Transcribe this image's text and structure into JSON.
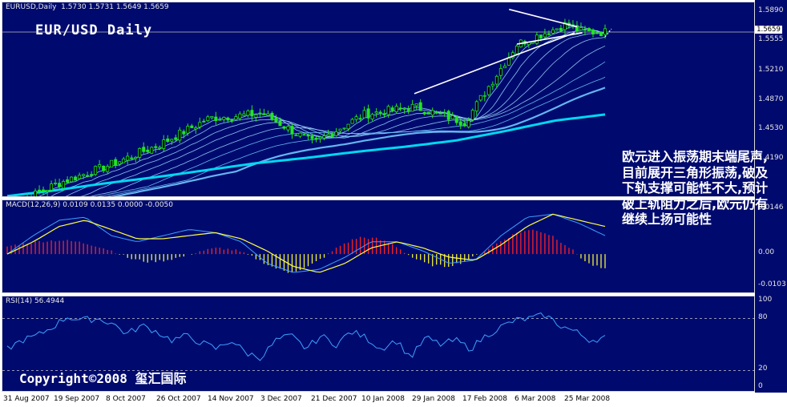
{
  "header": {
    "symbol_info": "EURUSD,Daily  1.5730 1.5731 1.5649 1.5659",
    "title": "EUR/USD Daily",
    "current_price_label": "1.5659"
  },
  "macd_panel": {
    "title": "MACD(12,26,9) 0.0109 0.0135 0.0000 -0.0050"
  },
  "rsi_panel": {
    "title": "RSI(14) 56.4944"
  },
  "annotation": "欧元进入振荡期末端尾声,目前展开三角形振荡,破及下轨支撑可能性不大,预计破上轨阻力之后,欧元仍有继续上扬可能性",
  "copyright": "Copyright©2008 玺汇国际",
  "chart_data": [
    {
      "type": "candlestick",
      "title": "EUR/USD Daily",
      "x_ticks": [
        "31 Aug 2007",
        "19 Sep 2007",
        "8 Oct 2007",
        "26 Oct 2007",
        "14 Nov 2007",
        "3 Dec 2007",
        "21 Dec 2007",
        "10 Jan 2008",
        "29 Jan 2008",
        "17 Feb 2008",
        "6 Mar 2008",
        "25 Mar 2008"
      ],
      "y_ticks": [
        1.589,
        1.5555,
        1.521,
        1.487,
        1.453,
        1.419
      ],
      "ylim": [
        1.375,
        1.6
      ],
      "colors": {
        "candles": "#22e622",
        "ma200": "#00d8f0",
        "ma_ribbon": "#9fd8ff",
        "trendline": "#ffffff"
      },
      "close_profile": {
        "dates": [
          "31 Aug 2007",
          "19 Sep 2007",
          "8 Oct 2007",
          "26 Oct 2007",
          "14 Nov 2007",
          "3 Dec 2007",
          "21 Dec 2007",
          "10 Jan 2008",
          "29 Jan 2008",
          "17 Feb 2008",
          "6 Mar 2008",
          "25 Mar 2008",
          "31 Mar 2008"
        ],
        "close": [
          1.362,
          1.391,
          1.412,
          1.436,
          1.467,
          1.472,
          1.438,
          1.471,
          1.48,
          1.462,
          1.552,
          1.575,
          1.5659
        ]
      },
      "ma_long_profile": [
        1.377,
        1.384,
        1.392,
        1.399,
        1.407,
        1.415,
        1.421,
        1.428,
        1.434,
        1.441,
        1.452,
        1.464,
        1.471
      ],
      "trendlines": [
        {
          "name": "upper-support-line",
          "points": [
            [
              "29 Jan 2008",
              1.495
            ],
            [
              "28 Mar 2008",
              1.565
            ]
          ]
        },
        {
          "name": "triangle-upper",
          "points": [
            [
              "3 Mar 2008",
              1.592
            ],
            [
              "29 Mar 2008",
              1.572
            ]
          ]
        },
        {
          "name": "triangle-lower",
          "points": [
            [
              "6 Mar 2008",
              1.552
            ],
            [
              "31 Mar 2008",
              1.565
            ]
          ]
        }
      ]
    },
    {
      "type": "bar",
      "title": "MACD(12,26,9) 0.0109 0.0135 0.0000 -0.0050",
      "y_ticks": [
        0.0146,
        0.0,
        -0.0103
      ],
      "ylim": [
        -0.013,
        0.0175
      ],
      "colors": {
        "positive": "#ff2020",
        "negative": "#f2f230",
        "signal": "#ffff40",
        "macd": "#3ea0ff"
      },
      "hist_profile": [
        0.0025,
        0.0035,
        0.0042,
        0.0045,
        0.004,
        0.0028,
        0.001,
        -0.0015,
        -0.0025,
        -0.002,
        -0.0008,
        0.001,
        0.002,
        0.0012,
        -0.001,
        -0.004,
        -0.006,
        -0.0045,
        -0.001,
        0.003,
        0.0055,
        0.005,
        0.003,
        -0.001,
        -0.0035,
        -0.004,
        -0.0025,
        0.0005,
        0.004,
        0.007,
        0.008,
        0.006,
        0.002,
        -0.003,
        -0.005
      ],
      "signal_profile": [
        0.0,
        0.004,
        0.009,
        0.011,
        0.008,
        0.005,
        0.005,
        0.006,
        0.007,
        0.005,
        0.001,
        -0.004,
        -0.006,
        -0.003,
        0.002,
        0.004,
        0.002,
        -0.001,
        -0.002,
        0.003,
        0.009,
        0.013,
        0.011,
        0.009
      ],
      "macd_profile": [
        0.0,
        0.006,
        0.011,
        0.012,
        0.006,
        0.004,
        0.006,
        0.008,
        0.007,
        0.004,
        -0.003,
        -0.006,
        -0.005,
        -0.001,
        0.004,
        0.004,
        0.001,
        -0.003,
        -0.002,
        0.006,
        0.012,
        0.013,
        0.01,
        0.006
      ]
    },
    {
      "type": "line",
      "title": "RSI(14) 56.4944",
      "y_ticks": [
        100,
        80,
        20,
        0
      ],
      "ylim": [
        0,
        100
      ],
      "colors": {
        "rsi": "#3ea0ff",
        "levels": "#c8c8c8"
      },
      "rsi_profile": [
        45,
        55,
        60,
        70,
        82,
        78,
        80,
        75,
        62,
        72,
        65,
        55,
        60,
        52,
        45,
        55,
        40,
        35,
        55,
        60,
        45,
        60,
        50,
        65,
        58,
        45,
        55,
        35,
        58,
        50,
        55,
        45,
        60,
        70,
        78,
        80,
        84,
        72,
        65,
        55,
        58
      ]
    }
  ]
}
